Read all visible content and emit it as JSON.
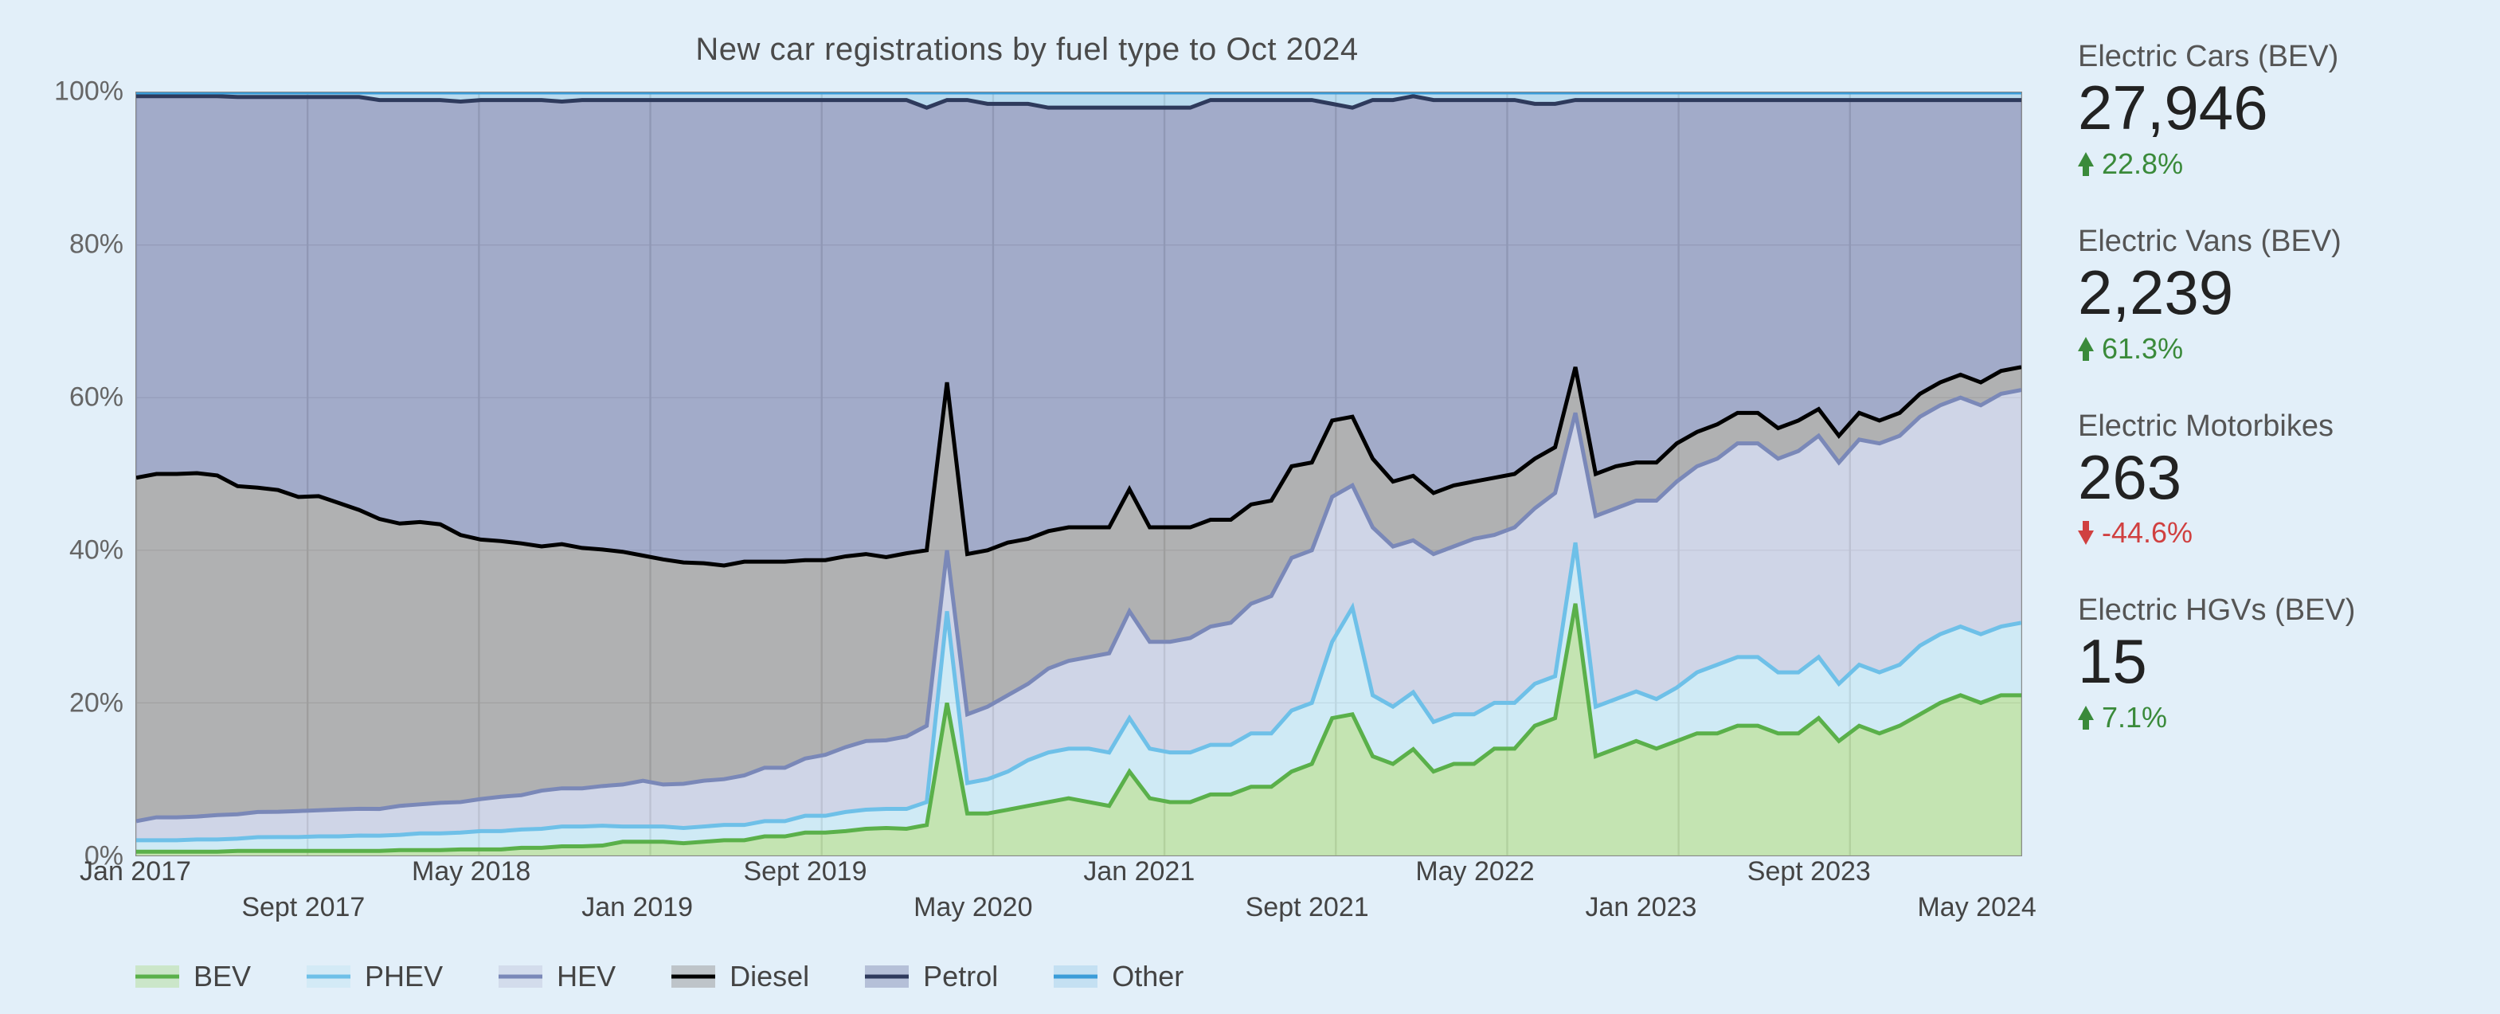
{
  "chart": {
    "type": "stacked-area",
    "title": "New car registrations by fuel type to Oct 2024",
    "title_fontsize": 40,
    "background_color": "#e2eff9",
    "plot_background": "#f1f7fc",
    "grid_color": "#aaaaaa",
    "border_color": "#888888",
    "ylim": [
      0,
      100
    ],
    "yticks": [
      0,
      20,
      40,
      60,
      80,
      100
    ],
    "ytick_suffix": "%",
    "ytick_fontsize": 34,
    "x_labels_top": [
      "Jan 2017",
      "May 2018",
      "Sept 2019",
      "Jan 2021",
      "May 2022",
      "Sept 2023"
    ],
    "x_labels_top_pos": [
      0.0,
      0.178,
      0.355,
      0.532,
      0.71,
      0.887
    ],
    "x_labels_bot": [
      "Sept 2017",
      "Jan 2019",
      "May 2020",
      "Sept 2021",
      "Jan 2023",
      "May 2024"
    ],
    "x_labels_bot_pos": [
      0.089,
      0.266,
      0.444,
      0.621,
      0.798,
      0.976
    ],
    "xtick_fontsize": 34,
    "n_points": 94,
    "series": [
      {
        "name": "BEV",
        "line_color": "#5ab04a",
        "fill_color": "#b4dd9a",
        "line_width": 5,
        "values": [
          0.5,
          0.5,
          0.5,
          0.5,
          0.5,
          0.6,
          0.6,
          0.6,
          0.6,
          0.6,
          0.6,
          0.6,
          0.6,
          0.7,
          0.7,
          0.7,
          0.8,
          0.8,
          0.8,
          1.0,
          1.0,
          1.2,
          1.2,
          1.3,
          1.8,
          1.8,
          1.8,
          1.6,
          1.8,
          2.0,
          2.0,
          2.5,
          2.5,
          3.0,
          3.0,
          3.2,
          3.5,
          3.6,
          3.5,
          4.0,
          20.0,
          5.5,
          5.5,
          6.0,
          6.5,
          7.0,
          7.5,
          7.0,
          6.5,
          11.0,
          7.5,
          7.0,
          7.0,
          8.0,
          8.0,
          9.0,
          9.0,
          11.0,
          12.0,
          18.0,
          18.5,
          13.0,
          12.0,
          14.0,
          11.0,
          12.0,
          12.0,
          14.0,
          14.0,
          17.0,
          18.0,
          33.0,
          13.0,
          14.0,
          15.0,
          14.0,
          15.0,
          16.0,
          16.0,
          17.0,
          17.0,
          16.0,
          16.0,
          18.0,
          15.0,
          17.0,
          16.0,
          17.0,
          18.5,
          20.0,
          21.0,
          20.0,
          21.0,
          21.0
        ]
      },
      {
        "name": "PHEV",
        "line_color": "#6ec0e8",
        "fill_color": "#c3e5f3",
        "line_width": 5,
        "values": [
          1.5,
          1.5,
          1.5,
          1.6,
          1.6,
          1.6,
          1.8,
          1.8,
          1.8,
          1.9,
          1.9,
          2.0,
          2.0,
          2.0,
          2.2,
          2.2,
          2.2,
          2.4,
          2.4,
          2.4,
          2.5,
          2.6,
          2.6,
          2.6,
          2.0,
          2.0,
          2.0,
          2.0,
          2.0,
          2.0,
          2.0,
          2.0,
          2.0,
          2.2,
          2.2,
          2.5,
          2.5,
          2.5,
          2.6,
          3.0,
          12.0,
          4.0,
          4.5,
          5.0,
          6.0,
          6.5,
          6.5,
          7.0,
          7.0,
          7.0,
          6.5,
          6.5,
          6.5,
          6.5,
          6.5,
          7.0,
          7.0,
          8.0,
          8.0,
          10.0,
          14.0,
          8.0,
          7.5,
          7.5,
          6.5,
          6.5,
          6.5,
          6.0,
          6.0,
          5.5,
          5.5,
          8.0,
          6.5,
          6.5,
          6.5,
          6.5,
          7.0,
          8.0,
          9.0,
          9.0,
          9.0,
          8.0,
          8.0,
          8.0,
          7.5,
          8.0,
          8.0,
          8.0,
          9.0,
          9.0,
          9.0,
          9.0,
          9.0,
          9.5
        ]
      },
      {
        "name": "HEV",
        "line_color": "#7a88b8",
        "fill_color": "#c3c9e0",
        "line_width": 5,
        "values": [
          2.5,
          3.0,
          3.0,
          3.0,
          3.2,
          3.2,
          3.3,
          3.3,
          3.4,
          3.4,
          3.5,
          3.5,
          3.5,
          3.8,
          3.8,
          4.0,
          4.0,
          4.2,
          4.5,
          4.5,
          5.0,
          5.0,
          5.0,
          5.2,
          5.5,
          6.0,
          5.5,
          5.8,
          6.0,
          6.0,
          6.5,
          7.0,
          7.0,
          7.5,
          8.0,
          8.5,
          9.0,
          9.0,
          9.5,
          10.0,
          8.0,
          9.0,
          9.5,
          10.0,
          10.0,
          11.0,
          11.5,
          12.0,
          13.0,
          14.0,
          14.0,
          14.5,
          15.0,
          15.5,
          16.0,
          17.0,
          18.0,
          20.0,
          20.0,
          19.0,
          16.0,
          22.0,
          21.0,
          20.0,
          22.0,
          22.0,
          23.0,
          22.0,
          23.0,
          23.0,
          24.0,
          17.0,
          25.0,
          25.0,
          25.0,
          26.0,
          27.0,
          27.0,
          27.0,
          28.0,
          28.0,
          28.0,
          29.0,
          29.0,
          29.0,
          29.5,
          30.0,
          30.0,
          30.0,
          30.0,
          30.0,
          30.0,
          30.5,
          30.5
        ]
      },
      {
        "name": "Diesel",
        "line_color": "#000000",
        "fill_color": "#9a9a9a",
        "line_width": 5,
        "values": [
          45.0,
          45.0,
          45.0,
          45.0,
          44.5,
          43.0,
          42.5,
          42.0,
          41.0,
          41.0,
          40.0,
          39.0,
          38.0,
          37.0,
          37.0,
          36.5,
          35.0,
          34.0,
          33.5,
          33.0,
          32.0,
          32.0,
          31.5,
          31.0,
          30.5,
          29.5,
          29.5,
          29.0,
          28.5,
          28.0,
          28.0,
          27.0,
          27.0,
          26.0,
          25.5,
          25.0,
          24.5,
          24.0,
          24.0,
          23.0,
          22.0,
          21.0,
          20.5,
          20.0,
          19.0,
          18.0,
          17.5,
          17.0,
          16.5,
          16.0,
          15.0,
          15.0,
          14.5,
          14.0,
          13.5,
          13.0,
          12.5,
          12.0,
          11.5,
          10.0,
          9.0,
          9.0,
          8.5,
          8.5,
          8.0,
          8.0,
          7.5,
          7.5,
          7.0,
          6.5,
          6.0,
          6.0,
          5.5,
          5.5,
          5.0,
          5.0,
          5.0,
          4.5,
          4.5,
          4.0,
          4.0,
          4.0,
          4.0,
          3.5,
          3.5,
          3.5,
          3.0,
          3.0,
          3.0,
          3.0,
          3.0,
          3.0,
          3.0,
          3.0
        ]
      },
      {
        "name": "Petrol",
        "line_color": "#2e3a5c",
        "fill_color": "#8792b8",
        "line_width": 5,
        "values": [
          50.0,
          49.5,
          49.5,
          49.4,
          49.7,
          51.0,
          51.2,
          51.3,
          52.2,
          52.1,
          53.0,
          53.9,
          54.9,
          55.5,
          55.3,
          55.6,
          56.8,
          57.6,
          57.8,
          58.1,
          58.5,
          58.0,
          58.7,
          58.9,
          59.2,
          59.7,
          60.2,
          60.6,
          60.7,
          61.0,
          60.5,
          60.5,
          60.5,
          60.3,
          60.3,
          59.8,
          59.5,
          59.9,
          59.4,
          58.0,
          37.0,
          59.5,
          58.5,
          57.5,
          57.0,
          55.5,
          55.0,
          55.0,
          55.0,
          50.0,
          55.0,
          55.0,
          55.0,
          55.0,
          55.0,
          53.0,
          52.5,
          48.0,
          47.5,
          41.5,
          40.5,
          47.0,
          50.0,
          50.0,
          51.5,
          50.5,
          50.0,
          49.5,
          49.0,
          46.5,
          45.0,
          35.0,
          49.0,
          48.0,
          47.5,
          47.5,
          45.0,
          43.5,
          42.5,
          41.0,
          41.0,
          43.0,
          42.0,
          40.5,
          44.0,
          41.0,
          42.0,
          41.0,
          38.5,
          37.0,
          36.0,
          37.0,
          35.5,
          35.0
        ]
      },
      {
        "name": "Other",
        "line_color": "#3b9cd8",
        "fill_color": "#a5d2eb",
        "line_width": 5,
        "values": [
          0.5,
          0.5,
          0.5,
          0.5,
          0.5,
          0.6,
          0.6,
          0.6,
          0.6,
          0.6,
          0.6,
          0.6,
          1.0,
          1.0,
          1.0,
          1.0,
          1.2,
          1.0,
          1.0,
          1.0,
          1.0,
          1.2,
          1.0,
          1.0,
          1.0,
          1.0,
          1.0,
          1.0,
          1.0,
          1.0,
          1.0,
          1.0,
          1.0,
          1.0,
          1.0,
          1.0,
          1.0,
          1.0,
          1.0,
          2.0,
          1.0,
          1.0,
          1.5,
          1.5,
          1.5,
          2.0,
          2.0,
          2.0,
          2.0,
          2.0,
          2.0,
          2.0,
          2.0,
          1.0,
          1.0,
          1.0,
          1.0,
          1.0,
          1.0,
          1.5,
          2.0,
          1.0,
          1.0,
          0.5,
          1.0,
          1.0,
          1.0,
          1.0,
          1.0,
          1.5,
          1.5,
          1.0,
          1.0,
          1.0,
          1.0,
          1.0,
          1.0,
          1.0,
          1.0,
          1.0,
          1.0,
          1.0,
          1.0,
          1.0,
          1.0,
          1.0,
          1.0,
          1.0,
          1.0,
          1.0,
          1.0,
          1.0,
          1.0,
          1.0
        ]
      }
    ],
    "legend_fontsize": 36
  },
  "stats": [
    {
      "label": "Electric Cars (BEV)",
      "value": "27,946",
      "delta": "22.8%",
      "direction": "up"
    },
    {
      "label": "Electric Vans (BEV)",
      "value": "2,239",
      "delta": "61.3%",
      "direction": "up"
    },
    {
      "label": "Electric Motorbikes",
      "value": "263",
      "delta": "-44.6%",
      "direction": "down"
    },
    {
      "label": "Electric HGVs (BEV)",
      "value": "15",
      "delta": "7.1%",
      "direction": "up"
    }
  ],
  "colors": {
    "up": "#3a8a3a",
    "down": "#d04040",
    "text_primary": "#222222",
    "text_secondary": "#555555"
  }
}
